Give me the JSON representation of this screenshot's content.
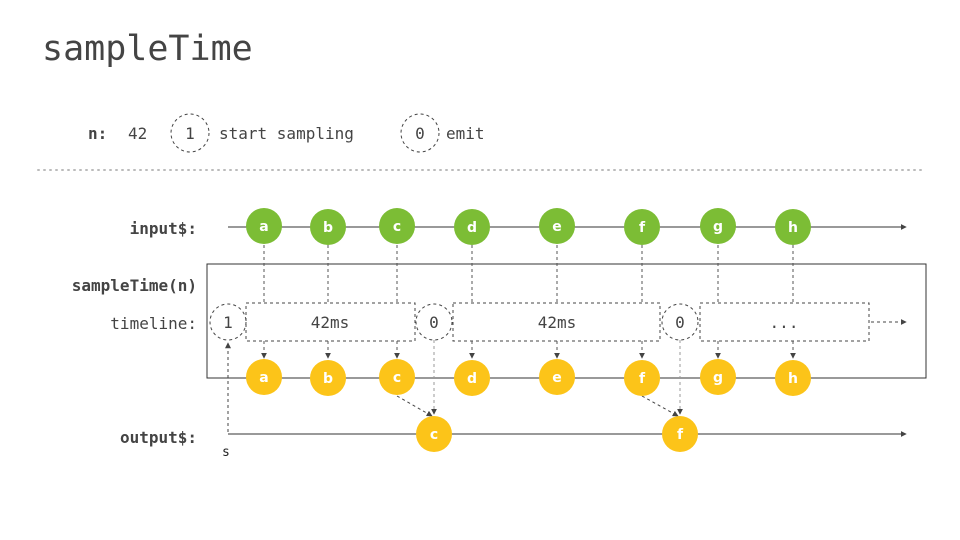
{
  "title": "sampleTime",
  "legend": {
    "n_label": "n:",
    "n_value": "42",
    "start_symbol": "1",
    "start_text": "start sampling",
    "emit_symbol": "0",
    "emit_text": "emit"
  },
  "labels": {
    "input": "input$:",
    "operator": "sampleTime(n)",
    "timeline": "timeline:",
    "output": "output$:",
    "subscribe": "s"
  },
  "timeline": {
    "start_marker": "1",
    "emit_markers": [
      "0",
      "0"
    ],
    "segments": [
      "42ms",
      "42ms",
      "..."
    ]
  },
  "input_marbles": [
    "a",
    "b",
    "c",
    "d",
    "e",
    "f",
    "g",
    "h"
  ],
  "output_marbles": [
    "c",
    "f"
  ],
  "colors": {
    "input": "#7cbd35",
    "passed": "#fcc419",
    "text": "#444444",
    "line": "#333333",
    "dash": "#666666"
  }
}
